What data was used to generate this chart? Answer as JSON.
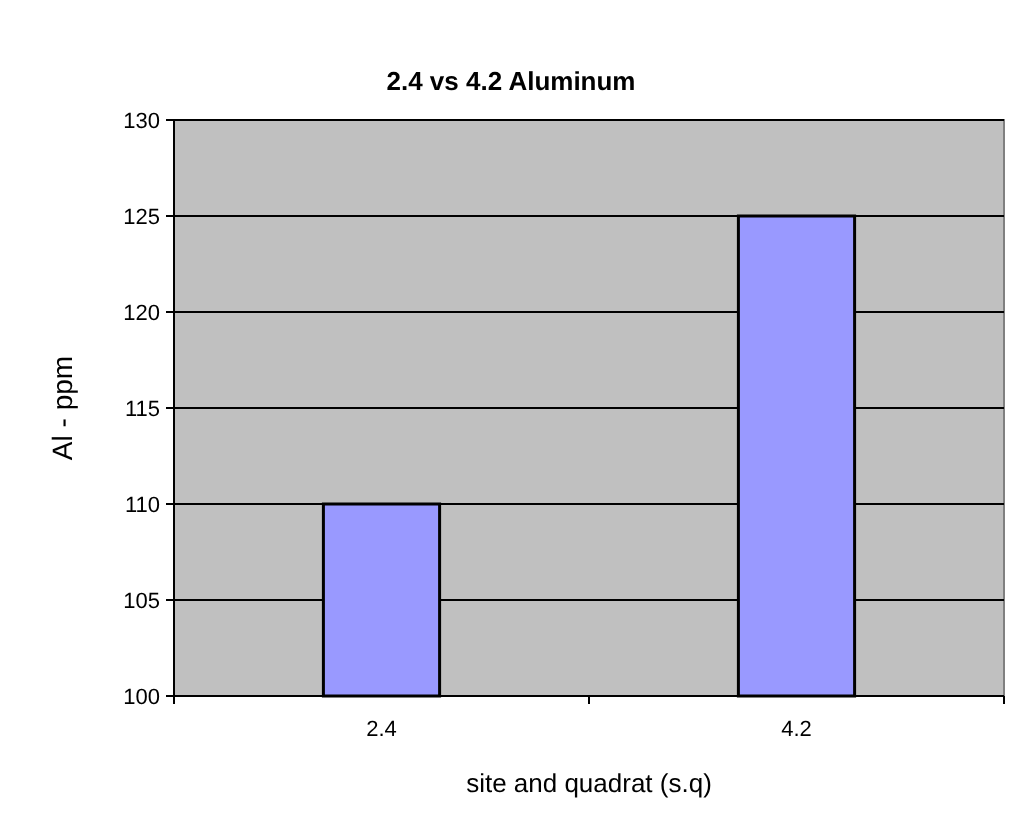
{
  "chart_data": {
    "type": "bar",
    "title": "2.4 vs 4.2 Aluminum",
    "xlabel": "site and quadrat (s.q)",
    "ylabel": "Al - ppm",
    "categories": [
      "2.4",
      "4.2"
    ],
    "values": [
      110,
      125
    ],
    "color": "#9999ff",
    "ylim": [
      100,
      130
    ],
    "yticks": [
      100,
      105,
      110,
      115,
      120,
      125,
      130
    ],
    "grid": "y"
  }
}
